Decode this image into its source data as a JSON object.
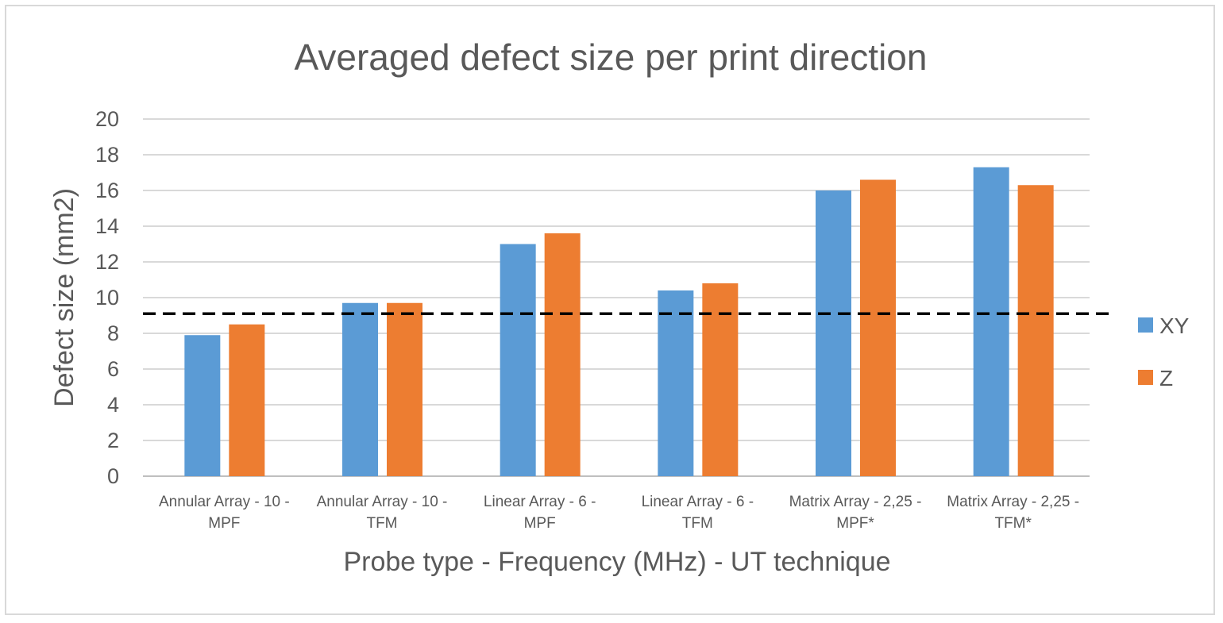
{
  "chart_data": {
    "type": "bar",
    "title": "Averaged defect size per print direction",
    "xlabel": "Probe type - Frequency (MHz) - UT technique",
    "ylabel": "Defect size (mm2)",
    "ylim": [
      0,
      20
    ],
    "yticks": [
      "0",
      "2",
      "4",
      "6",
      "8",
      "10",
      "12",
      "14",
      "16",
      "18",
      "20"
    ],
    "categories": [
      [
        "Annular Array - 10 -",
        "MPF"
      ],
      [
        "Annular Array - 10 -",
        "TFM"
      ],
      [
        "Linear Array - 6 -",
        "MPF"
      ],
      [
        "Linear Array - 6 -",
        "TFM"
      ],
      [
        "Matrix Array - 2,25 -",
        "MPF*"
      ],
      [
        "Matrix Array - 2,25 -",
        "TFM*"
      ]
    ],
    "series": [
      {
        "name": "XY",
        "color": "#5b9bd5",
        "values": [
          7.9,
          9.7,
          13.0,
          10.4,
          16.0,
          17.3
        ]
      },
      {
        "name": "Z",
        "color": "#ed7d31",
        "values": [
          8.5,
          9.7,
          13.6,
          10.8,
          16.6,
          16.3
        ]
      }
    ],
    "reference_line": {
      "value": 9.1,
      "style": "dashed",
      "color": "#000000"
    },
    "grid": true,
    "legend": "right"
  }
}
